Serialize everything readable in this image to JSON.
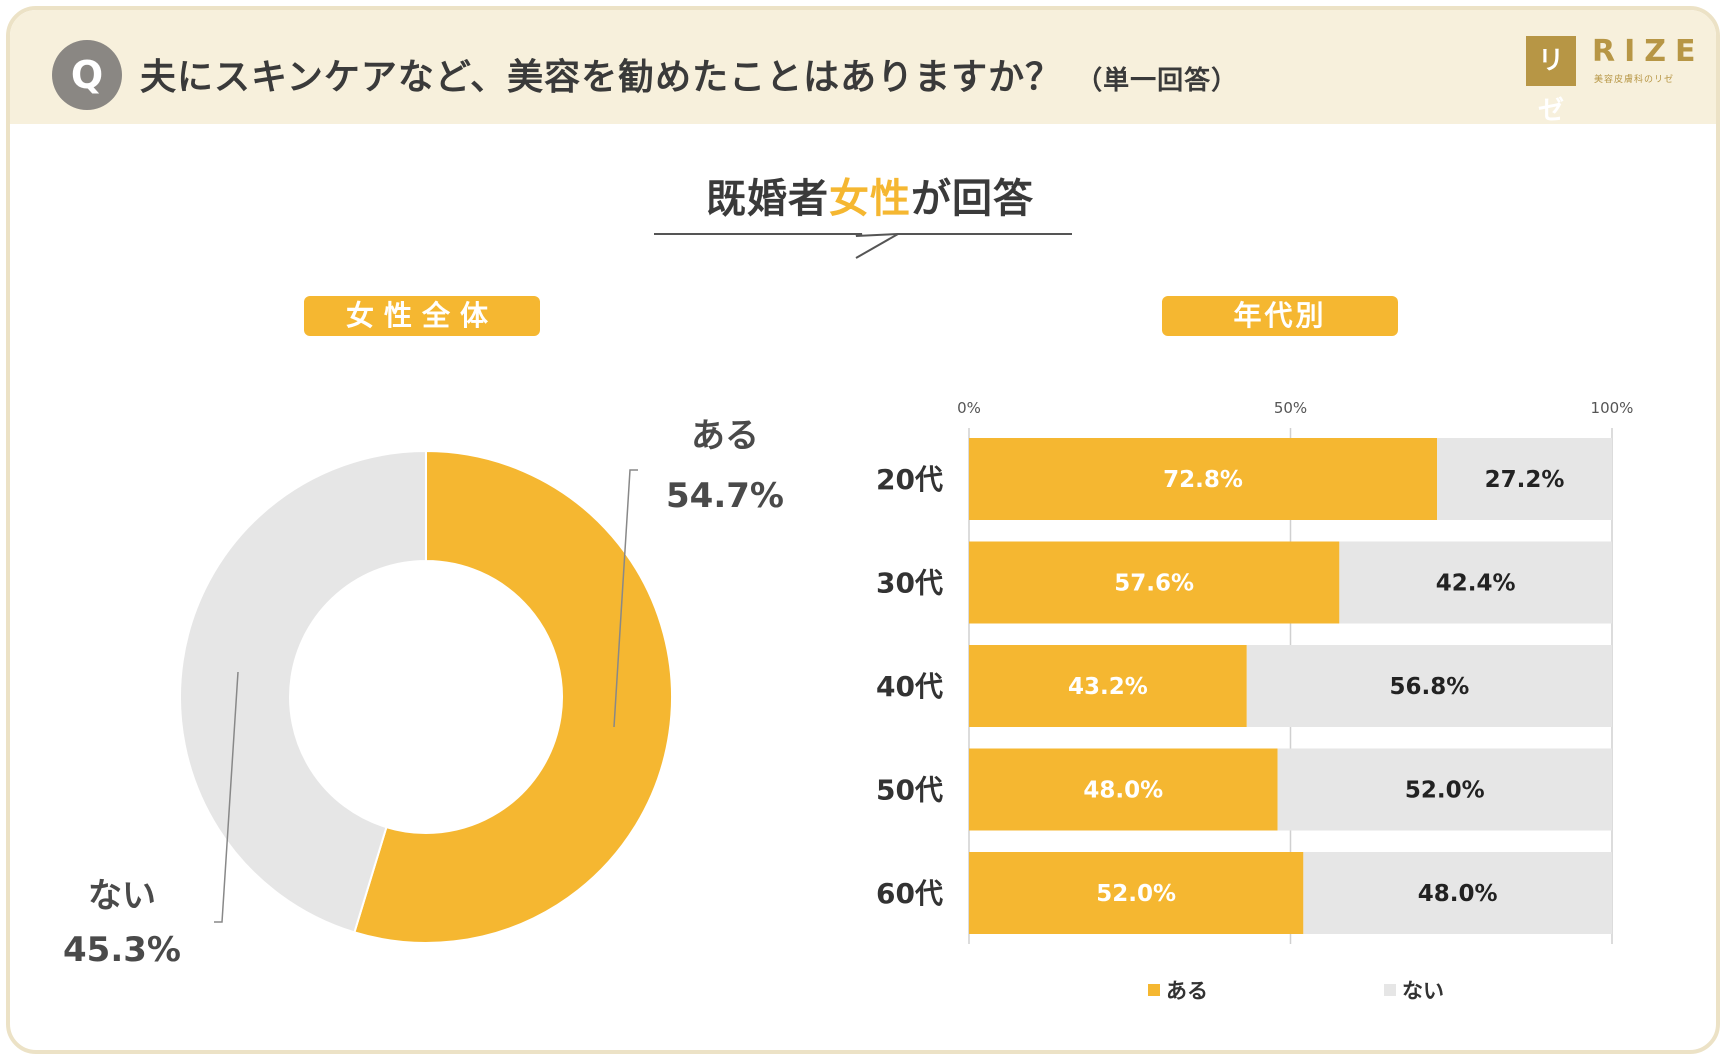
{
  "header": {
    "badge": "Q",
    "question": "夫にスキンケアなど、美容を勧めたことはありますか？",
    "note": "（単一回答）",
    "logo_mark": "リゼ",
    "logo_text": "RIZE",
    "logo_sub": "美容皮膚科のリゼ"
  },
  "respondent": {
    "prefix": "既婚者",
    "accent": "女性",
    "suffix": "が回答"
  },
  "colors": {
    "yes": "#f5b731",
    "no": "#e6e6e6",
    "accent": "#f5b731"
  },
  "chart_data": [
    {
      "type": "pie",
      "title": "女性全体",
      "donut": true,
      "slices": [
        {
          "label": "ある",
          "value": 54.7,
          "display": "54.7%"
        },
        {
          "label": "ない",
          "value": 45.3,
          "display": "45.3%"
        }
      ]
    },
    {
      "type": "bar",
      "orientation": "horizontal",
      "stacked": true,
      "title": "年代別",
      "categories": [
        "20代",
        "30代",
        "40代",
        "50代",
        "60代"
      ],
      "series": [
        {
          "name": "ある",
          "values": [
            72.8,
            57.6,
            43.2,
            48.0,
            52.0
          ],
          "labels": [
            "72.8%",
            "57.6%",
            "43.2%",
            "48.0%",
            "52.0%"
          ]
        },
        {
          "name": "ない",
          "values": [
            27.2,
            42.4,
            56.8,
            52.0,
            48.0
          ],
          "labels": [
            "27.2%",
            "42.4%",
            "56.8%",
            "52.0%",
            "48.0%"
          ]
        }
      ],
      "xlim": [
        0,
        100
      ],
      "xticks": [
        "0%",
        "50%",
        "100%"
      ],
      "legend": "bottom"
    }
  ]
}
